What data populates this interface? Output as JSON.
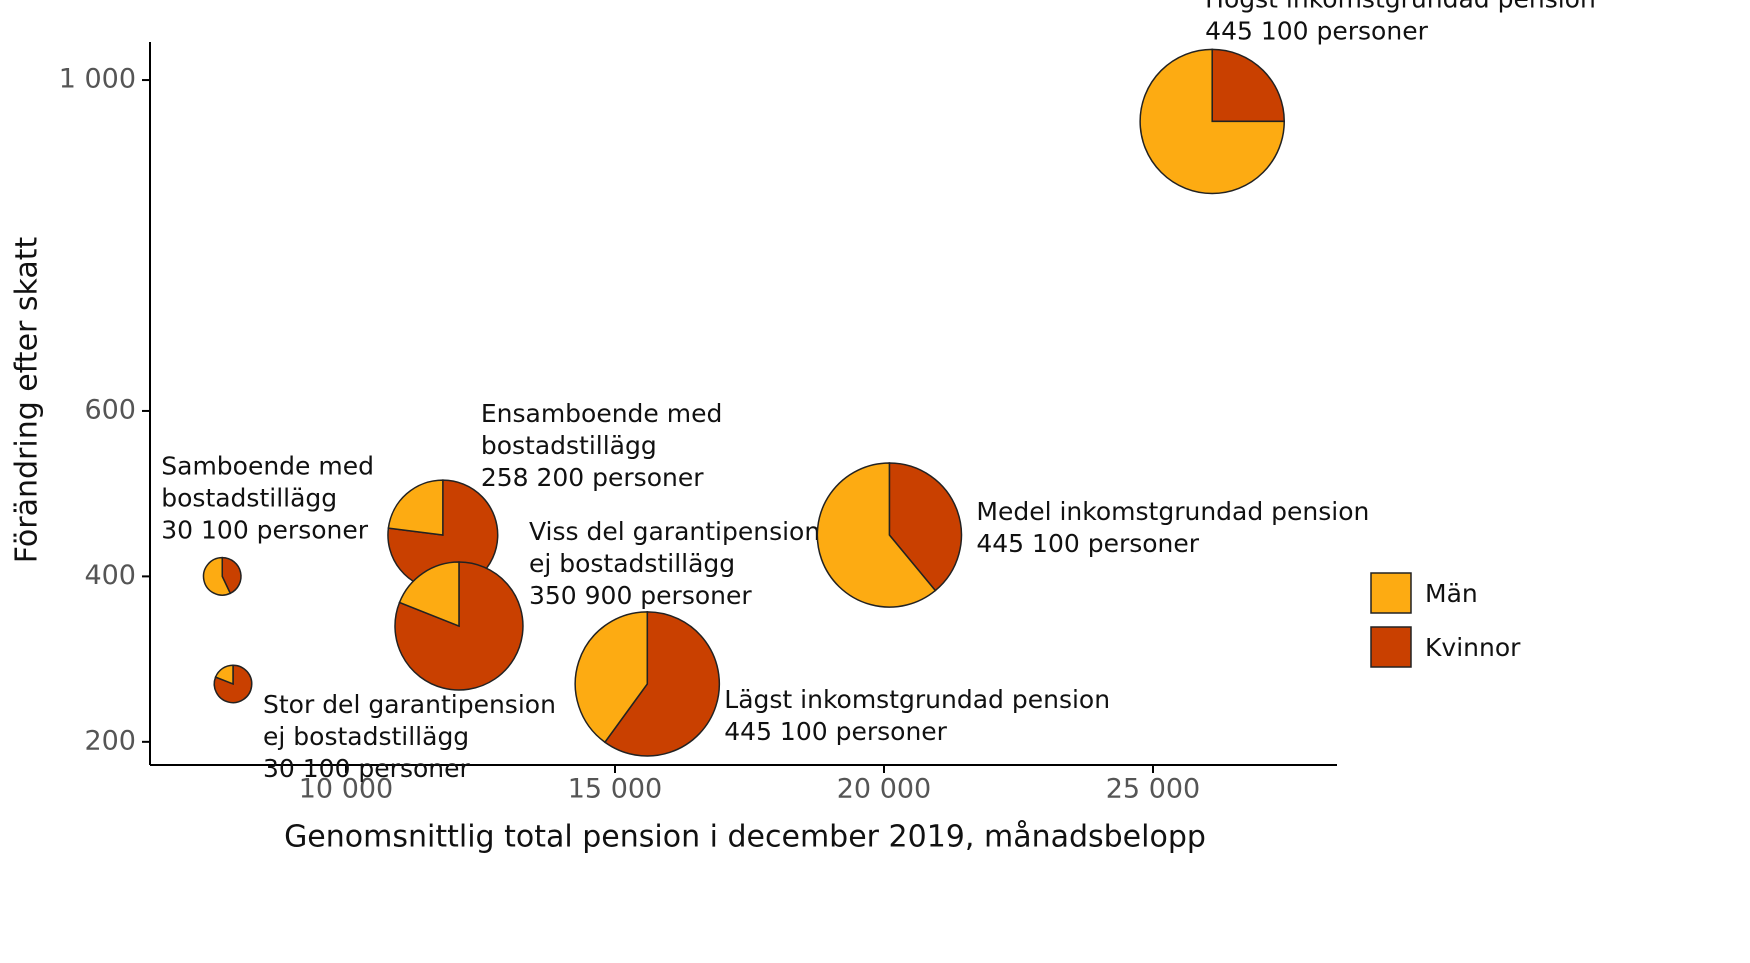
{
  "chart_data": {
    "type": "pie-scatter",
    "x_label": "Genomsnittlig total pension i december 2019, månadsbelopp",
    "y_label": "Förändring efter skatt",
    "xlim": [
      6357,
      28420
    ],
    "ylim": [
      172,
      1046
    ],
    "xticks": [
      {
        "value": 10000,
        "label": "10 000"
      },
      {
        "value": 15000,
        "label": "15 000"
      },
      {
        "value": 20000,
        "label": "20 000"
      },
      {
        "value": 25000,
        "label": "25 000"
      }
    ],
    "yticks": [
      {
        "value": 200,
        "label": "200"
      },
      {
        "value": 400,
        "label": "400"
      },
      {
        "value": 600,
        "label": "600"
      },
      {
        "value": 1000,
        "label": "1 000"
      }
    ],
    "series": [
      {
        "name": "Män",
        "color": "#fdab12"
      },
      {
        "name": "Kvinnor",
        "color": "#c94000"
      }
    ],
    "points": [
      {
        "label": [
          "Samboende med",
          "bostadstillägg",
          "30 100 personer"
        ],
        "x": 7700,
        "y": 400,
        "size": 30100,
        "values": [
          57,
          43
        ]
      },
      {
        "label": [
          "Stor del garantipension",
          "ej bostadstillägg",
          "30 100 personer"
        ],
        "x": 7900,
        "y": 270,
        "size": 30100,
        "values": [
          19,
          81
        ]
      },
      {
        "label": [
          "Ensamboende med",
          "bostadstillägg",
          "258 200 personer"
        ],
        "x": 11800,
        "y": 450,
        "size": 258200,
        "values": [
          23,
          77
        ]
      },
      {
        "label": [
          "Viss del garantipension",
          "ej bostadstillägg",
          "350 900 personer"
        ],
        "x": 12100,
        "y": 340,
        "size": 350900,
        "values": [
          19,
          81
        ]
      },
      {
        "label": [
          "Lägst inkomstgrundad pension",
          "445 100 personer"
        ],
        "x": 15600,
        "y": 270,
        "size": 445100,
        "values": [
          40,
          60
        ]
      },
      {
        "label": [
          "Medel inkomstgrundad pension",
          "445 100 personer"
        ],
        "x": 20100,
        "y": 450,
        "size": 445100,
        "values": [
          61,
          39
        ]
      },
      {
        "label": [
          "Högst inkomstgrundad pension",
          "445 100 personer"
        ],
        "x": 26100,
        "y": 950,
        "size": 445100,
        "values": [
          75,
          25
        ]
      }
    ]
  }
}
